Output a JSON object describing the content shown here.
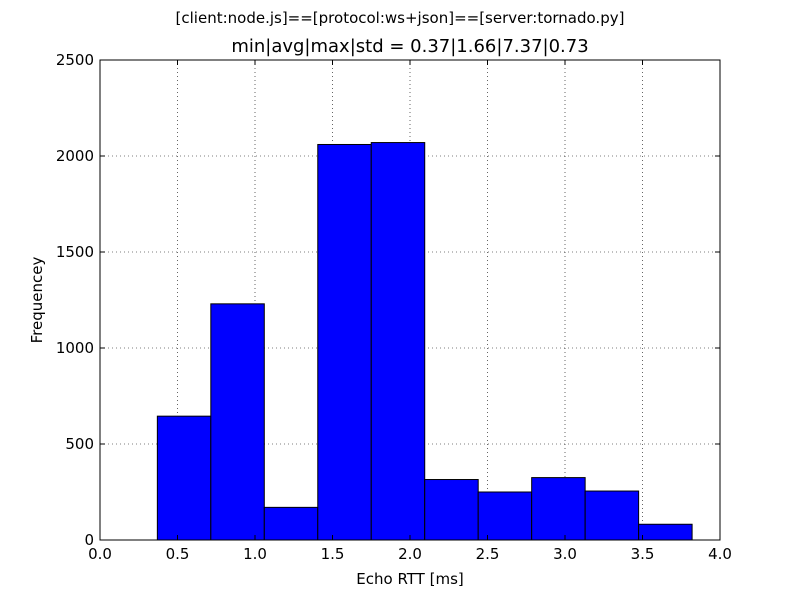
{
  "chart_data": {
    "type": "bar",
    "suptitle": "[client:node.js]==[protocol:ws+json]==[server:tornado.py]",
    "title": "min|avg|max|std = 0.37|1.66|7.37|0.73",
    "xlabel": "Echo RTT [ms]",
    "ylabel": "Frequencey",
    "xlim": [
      0.0,
      4.0
    ],
    "ylim": [
      0,
      2500
    ],
    "xticks": [
      "0.0",
      "0.5",
      "1.0",
      "1.5",
      "2.0",
      "2.5",
      "3.0",
      "3.5",
      "4.0"
    ],
    "yticks": [
      "0",
      "500",
      "1000",
      "1500",
      "2000",
      "2500"
    ],
    "grid": true,
    "bar_color": "#0000ff",
    "bins": [
      {
        "x0": 0.37,
        "x1": 0.715,
        "count": 645
      },
      {
        "x0": 0.715,
        "x1": 1.06,
        "count": 1230
      },
      {
        "x0": 1.06,
        "x1": 1.405,
        "count": 170
      },
      {
        "x0": 1.405,
        "x1": 1.75,
        "count": 2060
      },
      {
        "x0": 1.75,
        "x1": 2.095,
        "count": 2070
      },
      {
        "x0": 2.095,
        "x1": 2.44,
        "count": 315
      },
      {
        "x0": 2.44,
        "x1": 2.785,
        "count": 250
      },
      {
        "x0": 2.785,
        "x1": 3.13,
        "count": 325
      },
      {
        "x0": 3.13,
        "x1": 3.475,
        "count": 255
      },
      {
        "x0": 3.475,
        "x1": 3.82,
        "count": 82
      }
    ]
  }
}
